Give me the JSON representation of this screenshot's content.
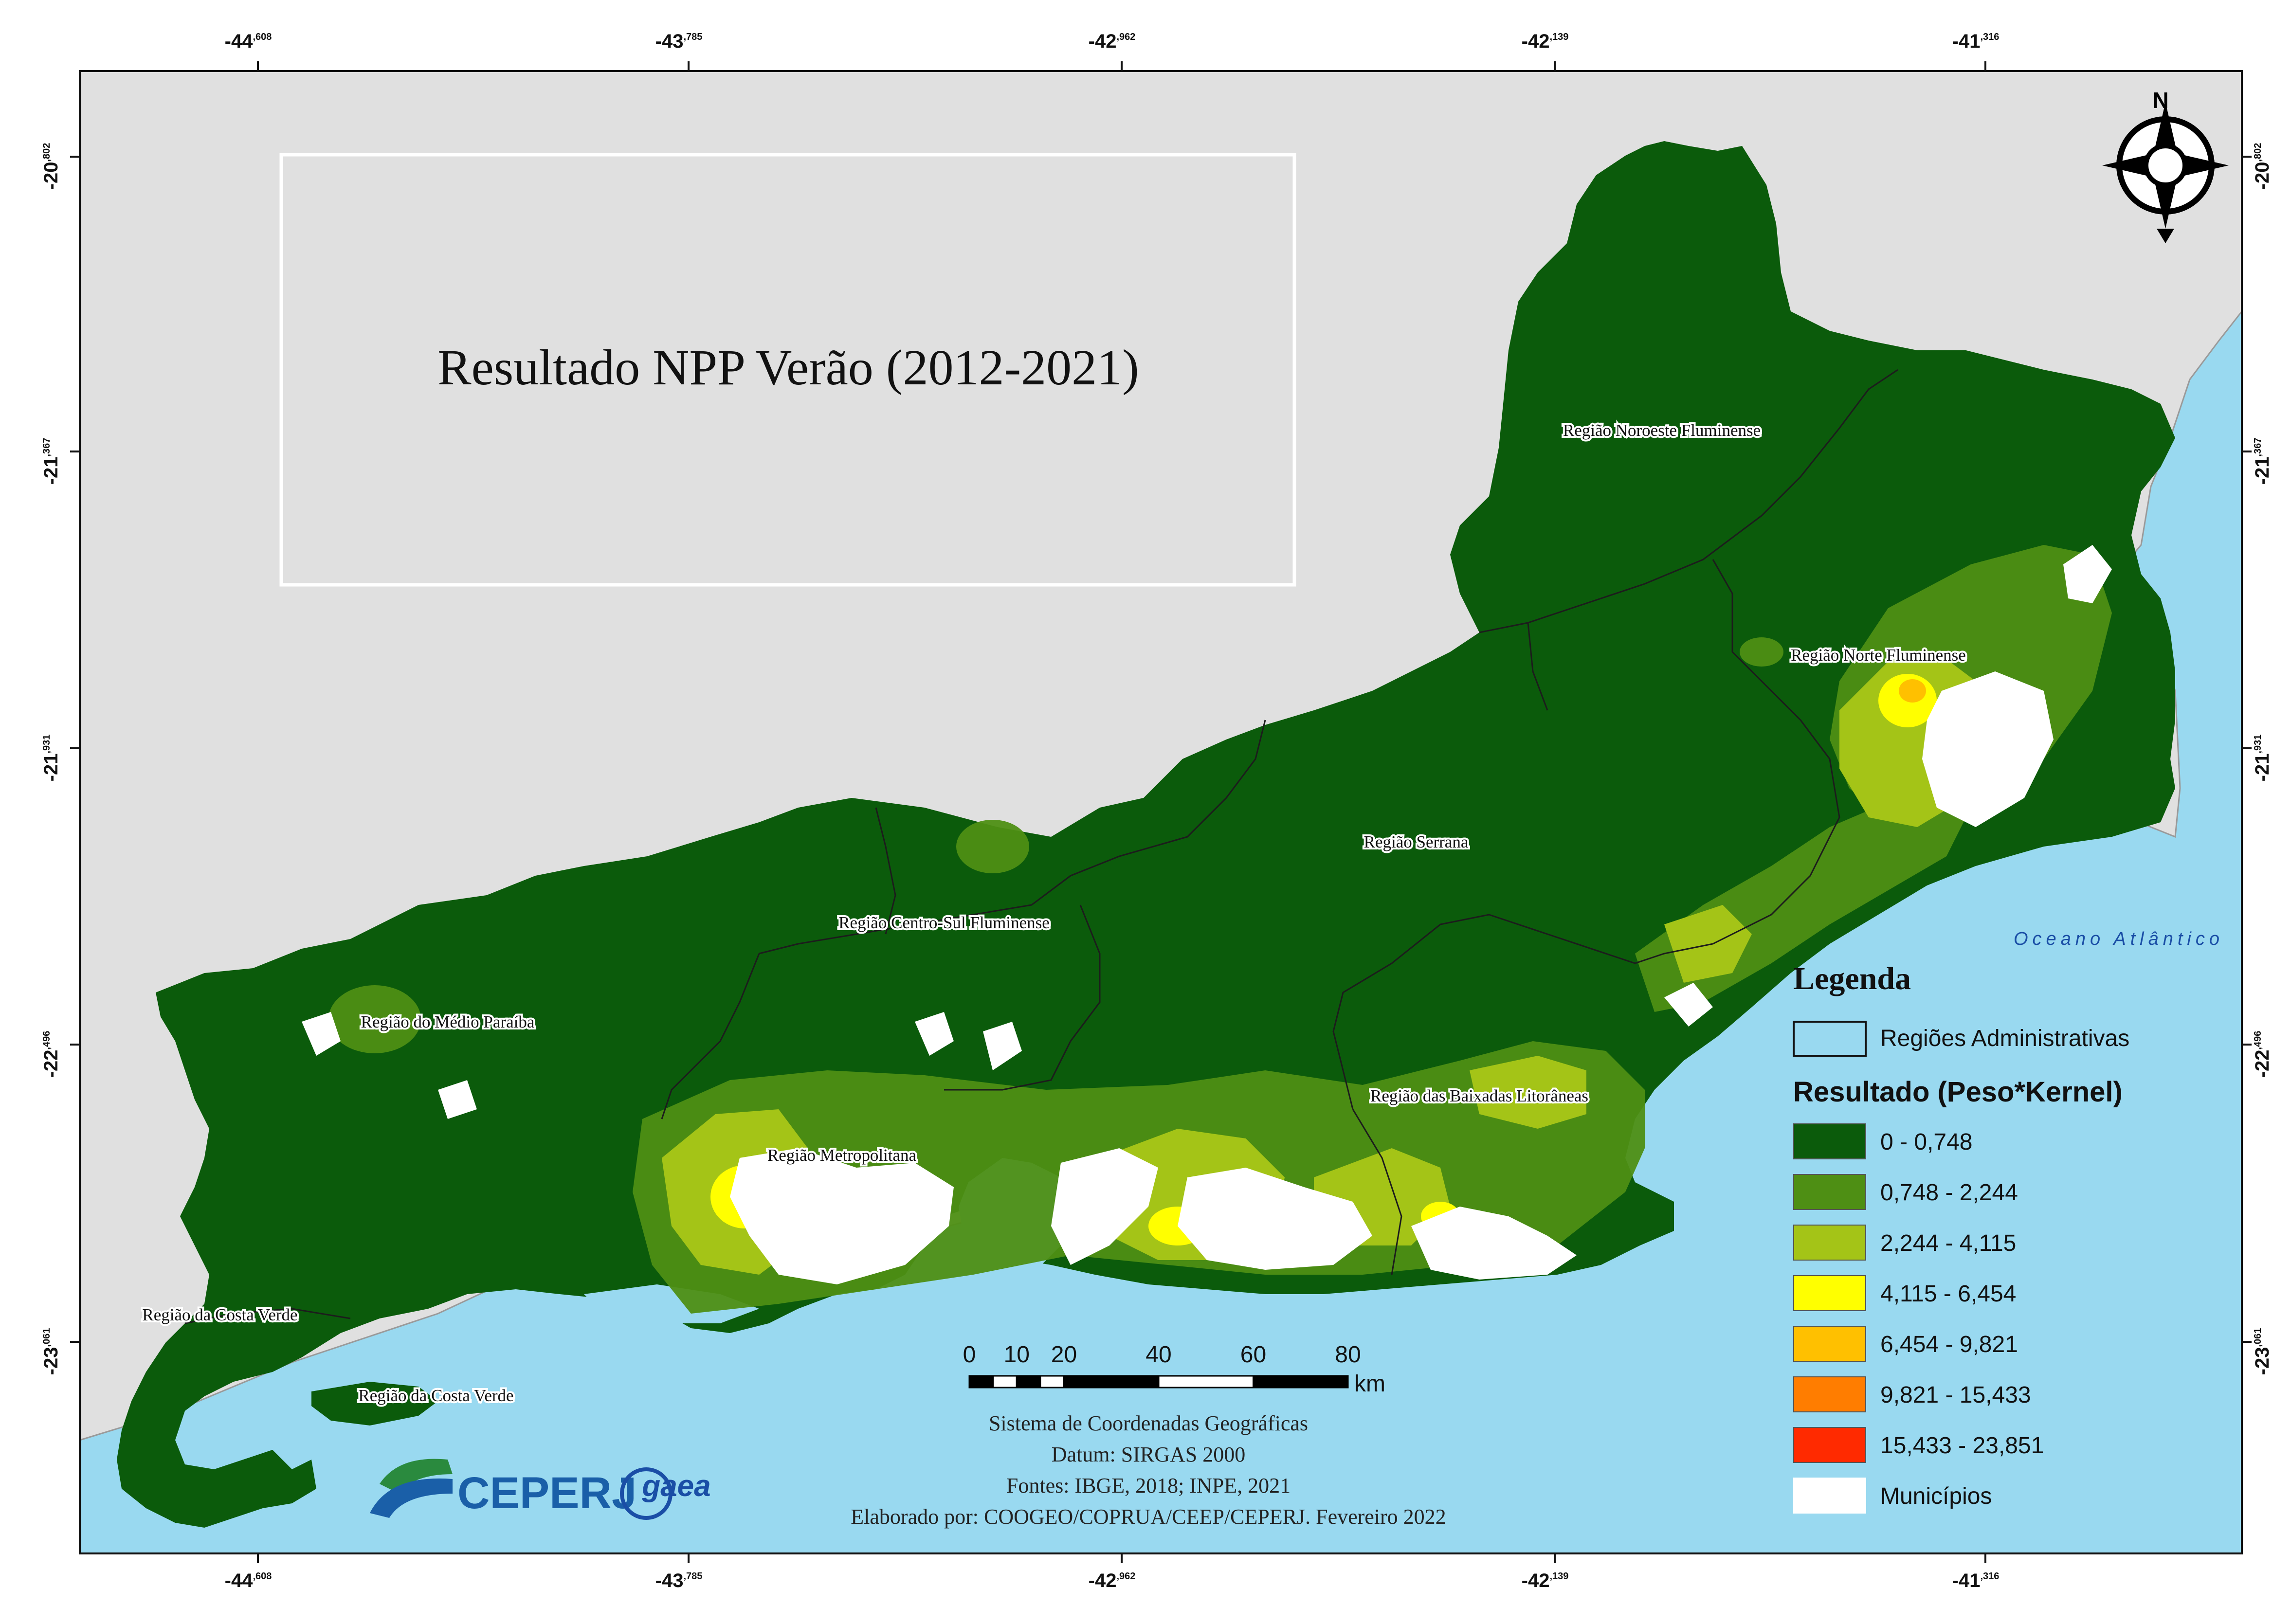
{
  "map": {
    "title": "Resultado NPP Verão (2012-2021)",
    "ocean_label": "Oceano Atlântico",
    "lon_ticks": [
      {
        "main": "-44",
        "sup": ",608"
      },
      {
        "main": "-43",
        "sup": ",785"
      },
      {
        "main": "-42",
        "sup": ",962"
      },
      {
        "main": "-42",
        "sup": ",139"
      },
      {
        "main": "-41",
        "sup": ",316"
      }
    ],
    "lat_ticks": [
      {
        "main": "-20",
        "sup": ",802"
      },
      {
        "main": "-21",
        "sup": ",367"
      },
      {
        "main": "-21",
        "sup": ",931"
      },
      {
        "main": "-22",
        "sup": ",496"
      },
      {
        "main": "-23",
        "sup": ",061"
      }
    ],
    "regions": [
      "Região Noroeste Fluminense",
      "Região Norte Fluminense",
      "Região Serrana",
      "Região Centro-Sul Fluminense",
      "Região do Médio Paraíba",
      "Região das Baixadas Litorâneas",
      "Região Metropolitana",
      "Região da Costa Verde",
      "Região da Costa Verde"
    ],
    "colors": {
      "ocean": "#99d9f0",
      "land_outside": "#e0e0e0",
      "class1": "#0b5b0b",
      "class2": "#4e8f14",
      "class3": "#a4c417",
      "class4": "#ffff00",
      "class5": "#ffc000",
      "class6": "#ff7d00",
      "class7": "#ff2a00",
      "municipios": "#ffffff"
    }
  },
  "legend": {
    "title": "Legenda",
    "boundary_label": "Regiões Administrativas",
    "result_title": "Resultado (Peso*Kernel)",
    "classes": [
      {
        "label": "0 - 0,748",
        "color": "#0b5b0b"
      },
      {
        "label": "0,748 - 2,244",
        "color": "#4e8f14"
      },
      {
        "label": "2,244 - 4,115",
        "color": "#a4c417"
      },
      {
        "label": "4,115 - 6,454",
        "color": "#ffff00"
      },
      {
        "label": "6,454 - 9,821",
        "color": "#ffc000"
      },
      {
        "label": "9,821 - 15,433",
        "color": "#ff7d00"
      },
      {
        "label": "15,433 - 23,851",
        "color": "#ff2a00"
      },
      {
        "label": "Municípios",
        "color": "#ffffff"
      }
    ]
  },
  "scale_bar": {
    "labels": [
      "0",
      "10",
      "20",
      "40",
      "60",
      "80"
    ],
    "unit": "km"
  },
  "credits": [
    "Sistema de Coordenadas Geográficas",
    "Datum: SIRGAS 2000",
    "Fontes: IBGE, 2018; INPE, 2021",
    "Elaborado por: COOGEO/COPRUA/CEEP/CEPERJ. Fevereiro 2022"
  ],
  "logos": {
    "ceperj": "CEPERJ",
    "gaea": "gaea"
  },
  "north_arrow": {
    "letter": "N"
  }
}
